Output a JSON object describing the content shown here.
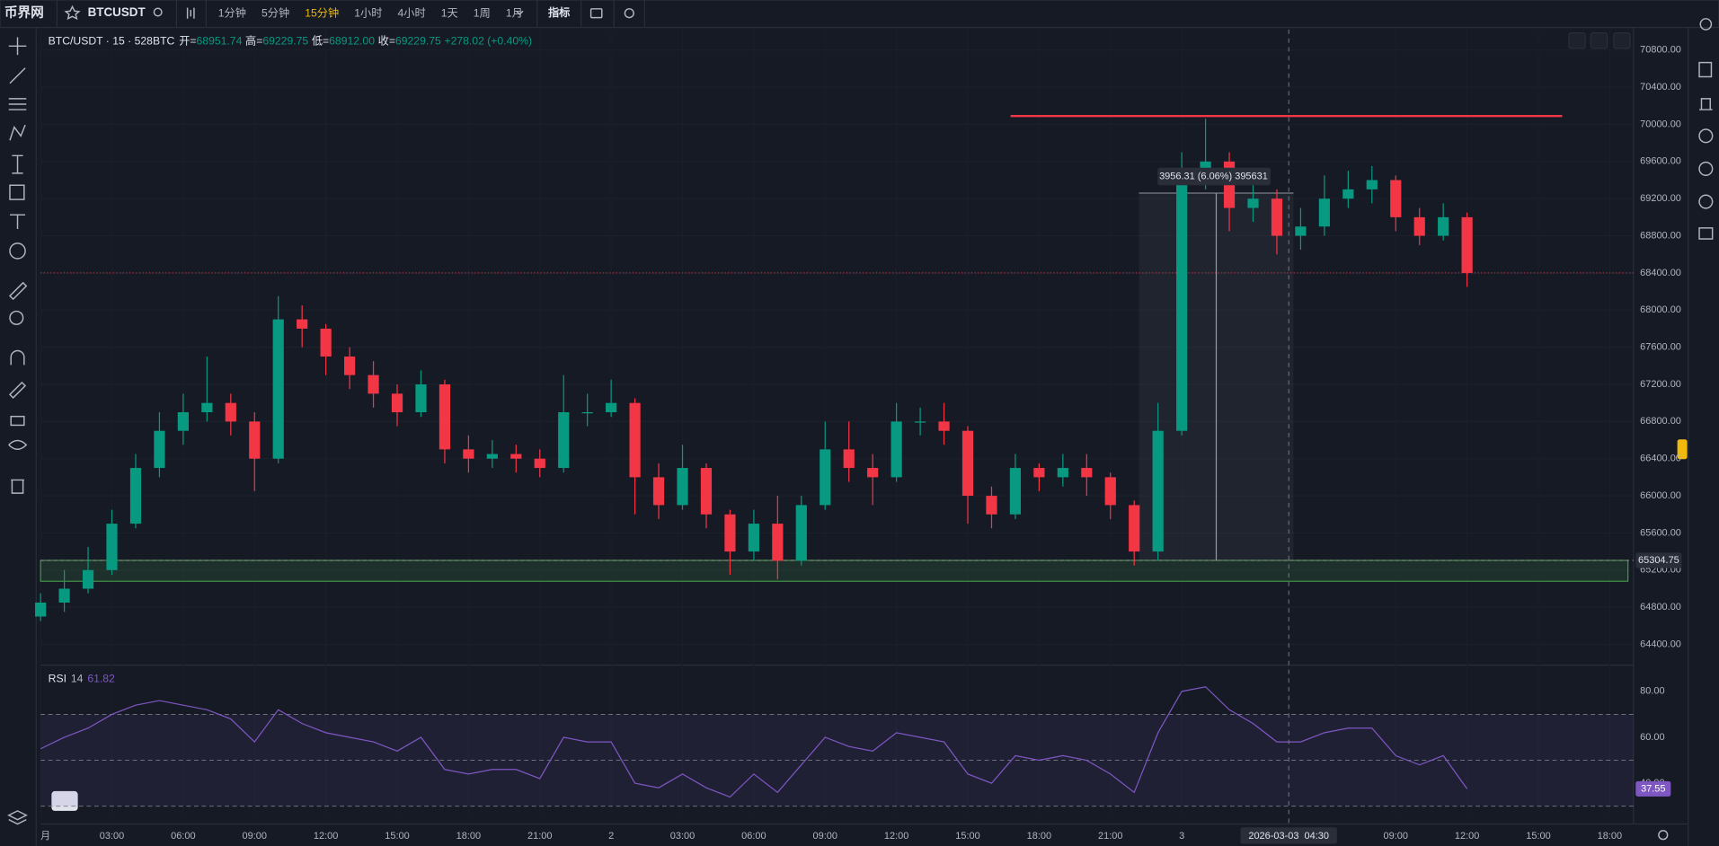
{
  "toolbar": {
    "logo": "币界网",
    "symbol": "BTCUSDT",
    "intervals": [
      "1分钟",
      "5分钟",
      "15分钟",
      "1小时",
      "4小时",
      "1天",
      "1周",
      "1月"
    ],
    "indicators": "指标"
  },
  "chart_data": [
    {
      "type": "candlestick",
      "legend": {
        "title": "BTC/USDT · 15 · 528BTC",
        "fields": [
          {
            "label": "开=",
            "value": "68951.74"
          },
          {
            "label": "高=",
            "value": "69229.75"
          },
          {
            "label": "低=",
            "value": "68912.00"
          },
          {
            "label": "收=",
            "value": "69229.75"
          }
        ],
        "change": "+278.02 (+0.40%)"
      },
      "x": [
        0,
        1,
        2,
        3,
        4,
        5,
        6,
        7,
        8,
        9,
        10,
        11,
        12,
        13,
        14,
        15,
        16,
        17,
        18,
        19,
        20,
        21,
        22,
        23,
        24,
        25,
        26,
        27,
        28,
        29,
        30,
        31,
        32,
        33,
        34,
        35,
        36,
        37,
        38,
        39,
        40,
        41,
        42,
        43,
        44,
        45,
        46,
        47,
        48,
        49,
        50,
        51,
        52,
        53,
        54,
        55,
        56,
        57,
        58,
        59,
        60
      ],
      "open": [
        64700,
        64850,
        65000,
        65200,
        65700,
        66300,
        66700,
        66900,
        67000,
        66800,
        66400,
        67900,
        67800,
        67500,
        67300,
        67100,
        66900,
        67200,
        66500,
        66400,
        66450,
        66400,
        66300,
        66900,
        66900,
        67000,
        66200,
        65900,
        66300,
        65800,
        65400,
        65700,
        65300,
        65900,
        66500,
        66300,
        66200,
        66800,
        66800,
        66700,
        66000,
        65800,
        66300,
        66200,
        66300,
        66200,
        65900,
        65400,
        66700,
        69500,
        69600,
        69100,
        69200,
        68800,
        68900,
        69200,
        69300,
        69400,
        69000,
        68800,
        69000
      ],
      "high": [
        64950,
        65200,
        65450,
        65850,
        66450,
        66900,
        67100,
        67500,
        67100,
        66900,
        68150,
        68050,
        67850,
        67600,
        67450,
        67200,
        67350,
        67250,
        66650,
        66600,
        66550,
        66500,
        67300,
        67100,
        67250,
        67050,
        66350,
        66550,
        66350,
        65850,
        65850,
        66000,
        66000,
        66800,
        66800,
        66450,
        67000,
        66950,
        67000,
        66750,
        66100,
        66450,
        66350,
        66450,
        66450,
        66250,
        65950,
        67000,
        69700,
        70060,
        69700,
        69400,
        69300,
        69100,
        69450,
        69500,
        69550,
        69450,
        69100,
        69150,
        69050
      ],
      "low": [
        64650,
        64750,
        64950,
        65150,
        65650,
        66200,
        66550,
        66800,
        66650,
        66050,
        66350,
        67600,
        67300,
        67150,
        66950,
        66750,
        66850,
        66350,
        66250,
        66300,
        66250,
        66200,
        66250,
        66750,
        66850,
        65800,
        65750,
        65850,
        65650,
        65150,
        65300,
        65100,
        65250,
        65850,
        66150,
        65900,
        66150,
        66650,
        66550,
        65700,
        65650,
        65750,
        66050,
        66100,
        66000,
        65750,
        65250,
        65300,
        66650,
        69300,
        68850,
        68950,
        68600,
        68650,
        68800,
        69100,
        69150,
        68850,
        68700,
        68750,
        68250
      ],
      "close": [
        64850,
        65000,
        65200,
        65700,
        66300,
        66700,
        66900,
        67000,
        66800,
        66400,
        67900,
        67800,
        67500,
        67300,
        67100,
        66900,
        67200,
        66500,
        66400,
        66450,
        66400,
        66300,
        66900,
        66900,
        67000,
        66200,
        65900,
        66300,
        65800,
        65400,
        65700,
        65300,
        65900,
        66500,
        66300,
        66200,
        66800,
        66800,
        66700,
        66000,
        65800,
        66300,
        66200,
        66300,
        66200,
        65900,
        65400,
        66700,
        69500,
        69600,
        69100,
        69200,
        68800,
        68900,
        69200,
        69300,
        69400,
        69000,
        68800,
        69000,
        68400
      ],
      "up_color": "#089981",
      "down_color": "#f23645",
      "xlim": [
        0,
        67
      ],
      "xticks": [
        {
          "value": 0,
          "label": "月"
        },
        {
          "value": 3,
          "label": "03:00"
        },
        {
          "value": 6,
          "label": "06:00"
        },
        {
          "value": 9,
          "label": "09:00"
        },
        {
          "value": 12,
          "label": "12:00"
        },
        {
          "value": 15,
          "label": "15:00"
        },
        {
          "value": 18,
          "label": "18:00"
        },
        {
          "value": 21,
          "label": "21:00"
        },
        {
          "value": 24,
          "label": "2"
        },
        {
          "value": 27,
          "label": "03:00"
        },
        {
          "value": 30,
          "label": "06:00"
        },
        {
          "value": 33,
          "label": "09:00"
        },
        {
          "value": 36,
          "label": "12:00"
        },
        {
          "value": 39,
          "label": "15:00"
        },
        {
          "value": 42,
          "label": "18:00"
        },
        {
          "value": 45,
          "label": "21:00"
        },
        {
          "value": 48,
          "label": "3"
        },
        {
          "value": 57,
          "label": "09:00"
        },
        {
          "value": 60,
          "label": "12:00"
        },
        {
          "value": 63,
          "label": "15:00"
        },
        {
          "value": 66,
          "label": "18:00"
        }
      ],
      "ylim": [
        64200,
        71020
      ],
      "yticks": [
        {
          "value": 64400,
          "label": "64400.00"
        },
        {
          "value": 64800,
          "label": "64800.00"
        },
        {
          "value": 65200,
          "label": "65200.00"
        },
        {
          "value": 65600,
          "label": "65600.00"
        },
        {
          "value": 66000,
          "label": "66000.00"
        },
        {
          "value": 66400,
          "label": "66400.00"
        },
        {
          "value": 66800,
          "label": "66800.00"
        },
        {
          "value": 67200,
          "label": "67200.00"
        },
        {
          "value": 67600,
          "label": "67600.00"
        },
        {
          "value": 68000,
          "label": "68000.00"
        },
        {
          "value": 68400,
          "label": "68400.00"
        },
        {
          "value": 68800,
          "label": "68800.00"
        },
        {
          "value": 69200,
          "label": "69200.00"
        },
        {
          "value": 69600,
          "label": "69600.00"
        },
        {
          "value": 70000,
          "label": "70000.00"
        },
        {
          "value": 70400,
          "label": "70400.00"
        },
        {
          "value": 70800,
          "label": "70800.00"
        }
      ],
      "grid": true,
      "annotations": {
        "resistance": {
          "value": 70090,
          "x": [
            40.8,
            64
          ],
          "color": "#f23645"
        },
        "support_zone": {
          "top": 65304.75,
          "bottom": 65080,
          "color": "#4caf50"
        },
        "measure": {
          "x": [
            46.2,
            52.7
          ],
          "y": [
            65300,
            69260
          ],
          "label": "3956.31 (6.06%) 395631"
        },
        "crosshair": {
          "x": 52.5,
          "label": "2026-03-03  04:30"
        }
      }
    },
    {
      "type": "line",
      "legend": {
        "name": "RSI",
        "period": "14",
        "value": "61.82"
      },
      "values": [
        55,
        60,
        64,
        70,
        74,
        76,
        74,
        72,
        68,
        58,
        72,
        66,
        62,
        60,
        58,
        54,
        60,
        46,
        44,
        46,
        46,
        42,
        60,
        58,
        58,
        40,
        38,
        44,
        38,
        34,
        44,
        36,
        48,
        60,
        56,
        54,
        62,
        60,
        58,
        44,
        40,
        52,
        50,
        52,
        50,
        44,
        36,
        62,
        80,
        82,
        72,
        66,
        58,
        58,
        62,
        64,
        64,
        52,
        48,
        52,
        37.55
      ],
      "color": "#7e57c2",
      "ylim": [
        27,
        90
      ],
      "yticks": [
        {
          "value": 40,
          "label": "40.00"
        },
        {
          "value": 60,
          "label": "60.00"
        },
        {
          "value": 80,
          "label": "80.00"
        }
      ],
      "levels": [
        30,
        50,
        70
      ]
    }
  ]
}
